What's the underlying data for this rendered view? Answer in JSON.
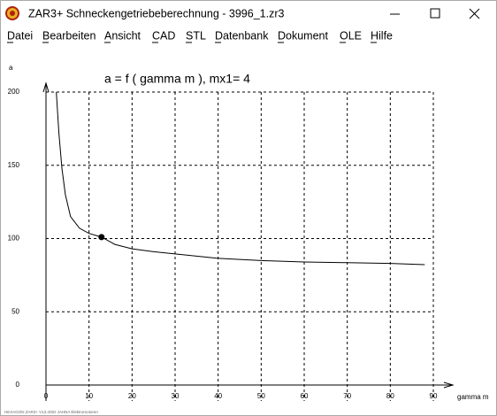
{
  "window": {
    "title": "ZAR3+   Schneckengetriebeberechnung  -  3996_1.zr3",
    "menu": [
      "Datei",
      "Bearbeiten",
      "Ansicht",
      "CAD",
      "STL",
      "Datenbank",
      "Dokument",
      "OLE",
      "Hilfe"
    ],
    "status": "HEXAGON ZAR3+ V13.4/SD  JAHNA Elektromotoren"
  },
  "chart_data": {
    "type": "line",
    "title": "a = f ( gamma m ), mx1= 4",
    "x_label": "gamma m",
    "y_label": "a",
    "series": [
      {
        "color": "#000000",
        "x": [
          2.4,
          3,
          3.7,
          4.5,
          5.7,
          7.8,
          10,
          12.9,
          16,
          20,
          25,
          30,
          40,
          50,
          60,
          70,
          80,
          88
        ],
        "values": [
          200,
          172,
          148,
          130,
          115,
          107,
          103.5,
          101,
          96,
          93,
          91,
          89.5,
          86.5,
          85,
          84,
          83.5,
          83,
          82.2
        ]
      }
    ],
    "marker": {
      "x": 12.9,
      "y": 101
    },
    "xlim": [
      0,
      90
    ],
    "xticks": [
      0,
      10,
      20,
      30,
      40,
      50,
      60,
      70,
      80,
      90
    ],
    "ylim": [
      0,
      200
    ],
    "yticks": [
      0,
      50,
      100,
      150,
      200
    ],
    "grid": true
  }
}
